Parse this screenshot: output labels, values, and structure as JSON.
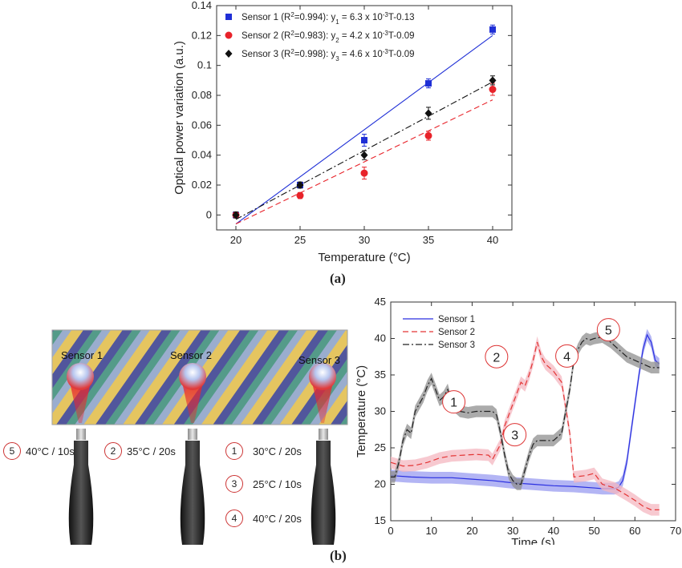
{
  "panel_labels": {
    "a": "(a)",
    "b": "(b)"
  },
  "chart_data": [
    {
      "type": "scatter",
      "title": "",
      "xlabel": "Temperature (°C)",
      "ylabel": "Optical power variation (a.u.)",
      "xlim": [
        18.5,
        41.5
      ],
      "ylim": [
        -0.01,
        0.14
      ],
      "xticks": [
        "20",
        "25",
        "30",
        "35",
        "40"
      ],
      "yticks": [
        "0",
        "0.02",
        "0.04",
        "0.06",
        "0.08",
        "0.1",
        "0.12",
        "0.14"
      ],
      "grid": false,
      "legend_position": "top-left",
      "series": [
        {
          "name": "Sensor 1",
          "legend_prefix": "Sensor 1 (R",
          "legend_r2": "=0.994): y",
          "legend_sub": "1",
          "legend_eq": " = 6.3 x 10",
          "legend_exp": "-3",
          "legend_tail": "T-0.13",
          "color": "#1f2fd6",
          "marker": "square",
          "line_style": "solid",
          "x": [
            20,
            25,
            30,
            35,
            40
          ],
          "y": [
            0.0,
            0.02,
            0.05,
            0.088,
            0.124
          ],
          "err": [
            0.002,
            0.002,
            0.004,
            0.003,
            0.003
          ],
          "fit": {
            "x": [
              20,
              40
            ],
            "y": [
              -0.006,
              0.12
            ]
          }
        },
        {
          "name": "Sensor 2",
          "legend_prefix": "Sensor 2 (R",
          "legend_r2": "=0.983): y",
          "legend_sub": "2",
          "legend_eq": " = 4.2 x 10",
          "legend_exp": "-3",
          "legend_tail": "T-0.09",
          "color": "#e8232a",
          "marker": "circle",
          "line_style": "dashed",
          "x": [
            20,
            25,
            30,
            35,
            40
          ],
          "y": [
            0.0,
            0.013,
            0.028,
            0.053,
            0.084
          ],
          "err": [
            0.002,
            0.002,
            0.004,
            0.003,
            0.004
          ],
          "fit": {
            "x": [
              20,
              40
            ],
            "y": [
              -0.006,
              0.077
            ]
          }
        },
        {
          "name": "Sensor 3",
          "legend_prefix": "Sensor 3 (R",
          "legend_r2": "=0.998): y",
          "legend_sub": "3",
          "legend_eq": " = 4.6 x 10",
          "legend_exp": "-3",
          "legend_tail": "T-0.09",
          "color": "#111111",
          "marker": "diamond",
          "line_style": "dashdot",
          "x": [
            20,
            25,
            30,
            35,
            40
          ],
          "y": [
            0.0,
            0.02,
            0.04,
            0.068,
            0.09
          ],
          "err": [
            0.002,
            0.002,
            0.003,
            0.004,
            0.003
          ],
          "fit": {
            "x": [
              20,
              40
            ],
            "y": [
              -0.003,
              0.089
            ]
          }
        }
      ]
    },
    {
      "type": "line",
      "title": "",
      "xlabel": "Time (s)",
      "ylabel": "Temperature (°C)",
      "xlim": [
        0,
        70
      ],
      "ylim": [
        15,
        45
      ],
      "xticks": [
        "0",
        "10",
        "20",
        "30",
        "40",
        "50",
        "60",
        "70"
      ],
      "yticks": [
        "15",
        "20",
        "25",
        "30",
        "35",
        "40",
        "45"
      ],
      "grid": false,
      "legend_position": "top-left",
      "band_halfwidth": 0.8,
      "series": [
        {
          "name": "Sensor 1",
          "color": "#2a2fe0",
          "band": "#9a9cf0",
          "line_style": "solid",
          "x": [
            0,
            5,
            10,
            15,
            20,
            25,
            30,
            35,
            40,
            45,
            50,
            52,
            55,
            56,
            57,
            58,
            59,
            60,
            61,
            62,
            63,
            64,
            65,
            66
          ],
          "y": [
            21.2,
            21.0,
            20.9,
            20.9,
            20.7,
            20.5,
            20.2,
            20.0,
            19.8,
            19.7,
            19.5,
            19.4,
            19.4,
            19.6,
            20.5,
            23,
            27,
            31,
            35,
            38.5,
            40.5,
            39.5,
            37,
            36.5
          ]
        },
        {
          "name": "Sensor 2",
          "color": "#e33434",
          "band": "#f4b7c0",
          "line_style": "dashed",
          "x": [
            0,
            3,
            6,
            9,
            12,
            15,
            18,
            21,
            24,
            25,
            27,
            28,
            30,
            32,
            33,
            34,
            35,
            36,
            37,
            38,
            40,
            42,
            44,
            45,
            48,
            50,
            52,
            55,
            58,
            60,
            62,
            64,
            66
          ],
          "y": [
            23,
            22.5,
            22.6,
            23,
            23.6,
            23.9,
            24,
            24.1,
            24,
            23.4,
            25.5,
            28,
            31,
            34,
            33.5,
            35,
            37,
            39.5,
            37.5,
            36.5,
            35.5,
            34,
            27,
            21,
            21.2,
            21.5,
            20,
            19.5,
            18.5,
            17.8,
            17,
            16.5,
            16.5
          ]
        },
        {
          "name": "Sensor 3",
          "color": "#222222",
          "band": "#8f8f8f",
          "line_style": "dashdot",
          "x": [
            0,
            1,
            2,
            3,
            4,
            5,
            6,
            7,
            8,
            9,
            10,
            11,
            12,
            13,
            14,
            15,
            17,
            19,
            21,
            23,
            25,
            26,
            27,
            28,
            29,
            30,
            31,
            32,
            33,
            34,
            35,
            36,
            38,
            40,
            42,
            44,
            45,
            46,
            47,
            48,
            49,
            50,
            52,
            54,
            56,
            58,
            60,
            62,
            64,
            66
          ],
          "y": [
            21,
            21,
            23,
            26,
            27.5,
            27,
            30,
            31,
            32,
            33.5,
            34.5,
            33,
            31.5,
            32,
            33,
            31,
            30,
            29.8,
            30,
            30,
            30,
            29.5,
            27,
            24,
            21.5,
            20.5,
            20,
            20,
            22,
            24,
            25.5,
            26,
            26,
            26,
            27,
            33,
            37,
            38.5,
            39.5,
            40,
            39.8,
            40,
            40.2,
            39.5,
            38.5,
            37.5,
            37,
            36.5,
            36,
            36
          ]
        }
      ],
      "callouts": [
        {
          "label": "1",
          "x": 15.5,
          "y": 31.3
        },
        {
          "label": "2",
          "x": 26.0,
          "y": 37.5
        },
        {
          "label": "3",
          "x": 30.5,
          "y": 26.8
        },
        {
          "label": "4",
          "x": 43.3,
          "y": 37.6
        },
        {
          "label": "5",
          "x": 53.5,
          "y": 41.2
        }
      ]
    }
  ],
  "photo": {
    "sensor_labels": [
      "Sensor 1",
      "Sensor 2",
      "Sensor 3"
    ],
    "steps": [
      {
        "num": "5",
        "text": "40°C / 10s"
      },
      {
        "num": "2",
        "text": "35°C / 20s"
      },
      {
        "num": "1",
        "text": "30°C / 20s"
      },
      {
        "num": "3",
        "text": "25°C / 10s"
      },
      {
        "num": "4",
        "text": "40°C / 20s"
      }
    ]
  }
}
